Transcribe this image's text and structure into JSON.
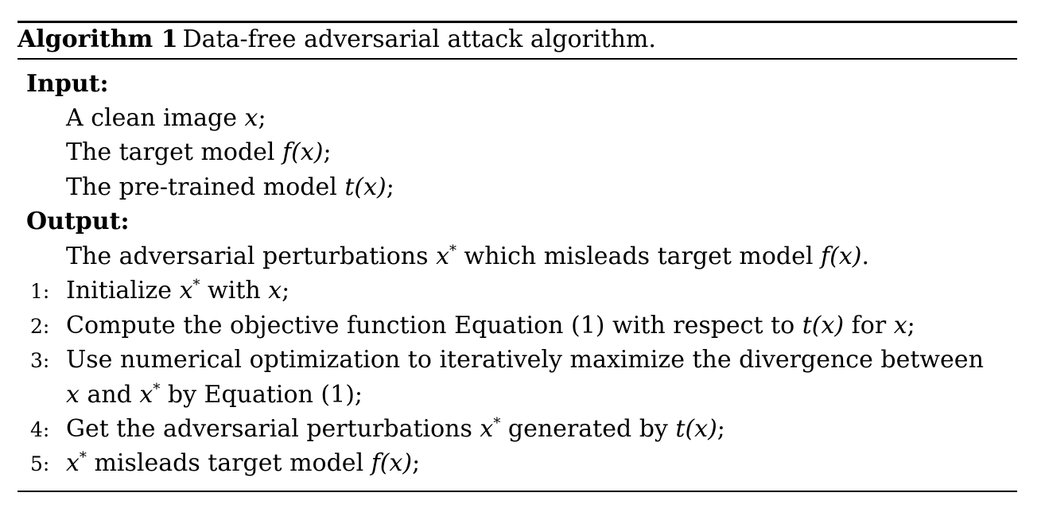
{
  "algorithm": {
    "label": "Algorithm 1",
    "title": "Data-free adversarial attack algorithm."
  },
  "input": {
    "heading": "Input:",
    "items": [
      {
        "text": "A clean image ",
        "math": "x",
        "after": ";"
      },
      {
        "text": "The target model ",
        "math": "f(x)",
        "after": ";"
      },
      {
        "text": "The pre-trained model ",
        "math": "t(x)",
        "after": ";"
      }
    ]
  },
  "output": {
    "heading": "Output:",
    "text_before": "The adversarial perturbations ",
    "math1": "x",
    "sup1": "*",
    "text_mid": " which misleads target model ",
    "math2": "f(x)",
    "text_after": "."
  },
  "steps": [
    {
      "num": "1:",
      "parts": [
        "Initialize ",
        "x",
        "*",
        " with ",
        "x",
        ";"
      ]
    },
    {
      "num": "2:",
      "parts": [
        "Compute the objective function Equation (1) with respect to ",
        "t(x)",
        " for ",
        "x",
        ";"
      ]
    },
    {
      "num": "3:",
      "line1": "Use numerical optimization to iteratively maximize the divergence between",
      "line2_parts": [
        "x",
        " and ",
        "x",
        "*",
        " by Equation (1);"
      ]
    },
    {
      "num": "4:",
      "parts": [
        "Get the adversarial perturbations ",
        "x",
        "*",
        " generated by ",
        "t(x)",
        ";"
      ]
    },
    {
      "num": "5:",
      "parts": [
        "x",
        "*",
        " misleads target model ",
        "f(x)",
        ";"
      ]
    }
  ]
}
